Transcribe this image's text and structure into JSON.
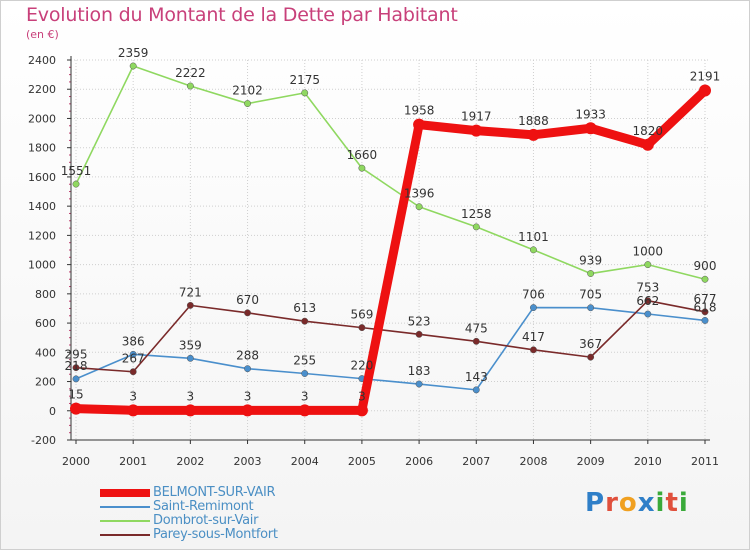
{
  "title": "Evolution du Montant de la Dette par Habitant",
  "subtitle": "(en €)",
  "brand": {
    "text": "Proxiti",
    "letter_colors": [
      "#2f7fc8",
      "#e0503c",
      "#f0a020",
      "#2f7fc8",
      "#3aaa3a",
      "#e0503c",
      "#3aaa3a"
    ]
  },
  "colors": {
    "grid": "#cfcfcf",
    "axis": "#333333",
    "tick_label": "#333333",
    "point_label": "#333333"
  },
  "chart_data": {
    "type": "line",
    "title": "Evolution du Montant de la Dette par Habitant",
    "subtitle": "(en €)",
    "x": [
      "2000",
      "2001",
      "2002",
      "2003",
      "2004",
      "2005",
      "2006",
      "2007",
      "2008",
      "2009",
      "2010",
      "2011"
    ],
    "ylim": [
      -200,
      2400
    ],
    "yticks": [
      -200,
      0,
      200,
      400,
      600,
      800,
      1000,
      1200,
      1400,
      1600,
      1800,
      2000,
      2200,
      2400
    ],
    "ytick_labels": [
      "-200",
      "0",
      "200",
      "400",
      "600",
      "800",
      "1000",
      "1200",
      "1400",
      "1600",
      "1800",
      "2000",
      "2200",
      "2400"
    ],
    "grid": true,
    "legend_position": "bottom-left",
    "series": [
      {
        "name": "BELMONT-SUR-VAIR",
        "color": "#ee1111",
        "weight": "thick",
        "values": [
          15,
          3,
          3,
          3,
          3,
          3,
          1958,
          1917,
          1888,
          1933,
          1820,
          2191
        ],
        "labels": [
          "15",
          "3",
          "3",
          "3",
          "3",
          "3",
          "1958",
          "1917",
          "1888",
          "1933",
          "1820",
          "2191"
        ]
      },
      {
        "name": "Saint-Remimont",
        "color": "#4a8fcc",
        "weight": "thin",
        "values": [
          218,
          386,
          359,
          288,
          255,
          220,
          183,
          143,
          706,
          705,
          662,
          618
        ],
        "labels": [
          "218",
          "386",
          "359",
          "288",
          "255",
          "220",
          "183",
          "143",
          "706",
          "705",
          "662",
          "618"
        ]
      },
      {
        "name": "Dombrot-sur-Vair",
        "color": "#8fd860",
        "weight": "thin",
        "values": [
          1551,
          2359,
          2222,
          2102,
          2175,
          1660,
          1396,
          1258,
          1101,
          939,
          1000,
          900
        ],
        "labels": [
          "1551",
          "2359",
          "2222",
          "2102",
          "2175",
          "1660",
          "1396",
          "1258",
          "1101",
          "939",
          "1000",
          "900"
        ]
      },
      {
        "name": "Parey-sous-Montfort",
        "color": "#7a2a2a",
        "weight": "thin",
        "values": [
          295,
          267,
          721,
          670,
          613,
          569,
          523,
          475,
          417,
          367,
          753,
          677
        ],
        "labels": [
          "295",
          "267",
          "721",
          "670",
          "613",
          "569",
          "523",
          "475",
          "417",
          "367",
          "753",
          "677"
        ]
      }
    ]
  }
}
